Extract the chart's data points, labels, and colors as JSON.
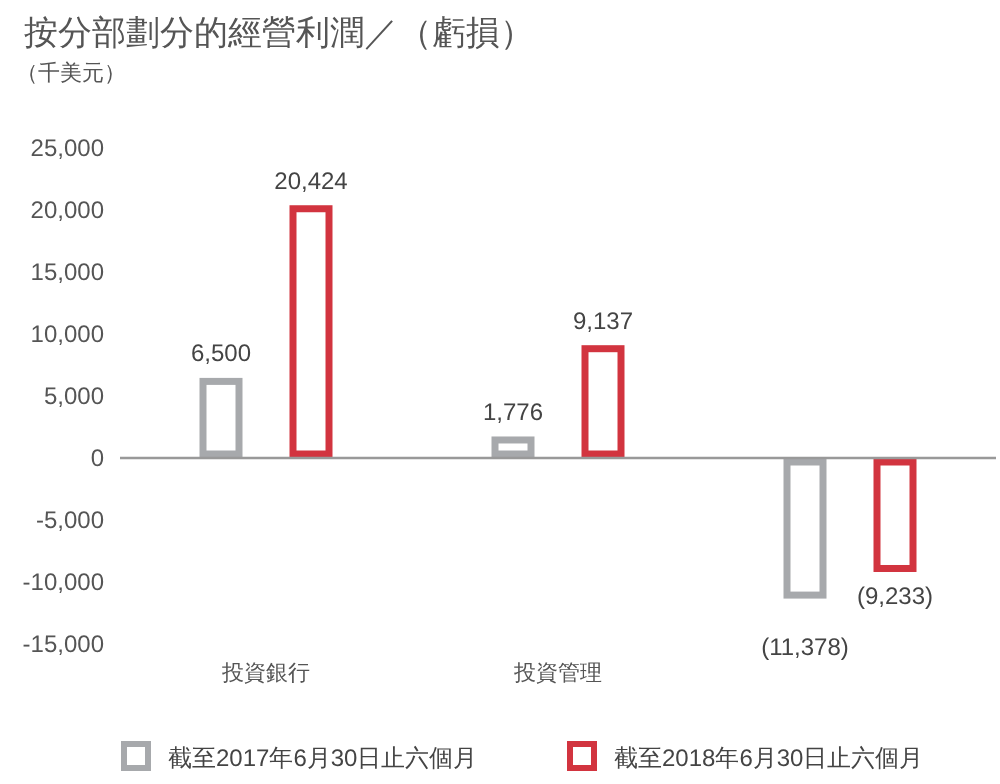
{
  "chart_data": {
    "type": "bar",
    "title": "按分部劃分的經營利潤／（虧損）",
    "ylabel": "（千美元）",
    "categories": [
      "投資銀行",
      "投資管理",
      null
    ],
    "series": [
      {
        "name": "截至2017年6月30日止六個月",
        "color": "#a7a9ac",
        "values": [
          6500,
          1776,
          -11378
        ],
        "value_labels": [
          "6,500",
          "1,776",
          "(11,378)"
        ]
      },
      {
        "name": "截至2018年6月30日止六個月",
        "color": "#d2343f",
        "values": [
          20424,
          9137,
          -9233
        ],
        "value_labels": [
          "20,424",
          "9,137",
          "(9,233)"
        ]
      }
    ],
    "ylim": [
      -15000,
      25000
    ],
    "yticks": [
      {
        "value": -15000,
        "label": "-15,000"
      },
      {
        "value": -10000,
        "label": "-10,000"
      },
      {
        "value": -5000,
        "label": "-5,000"
      },
      0,
      {
        "value": 5000,
        "label": "5,000"
      },
      {
        "value": 10000,
        "label": "10,000"
      },
      {
        "value": 15000,
        "label": "15,000"
      },
      {
        "value": 20000,
        "label": "20,000"
      },
      {
        "value": 25000,
        "label": "25,000"
      }
    ],
    "legend": "bottom"
  }
}
